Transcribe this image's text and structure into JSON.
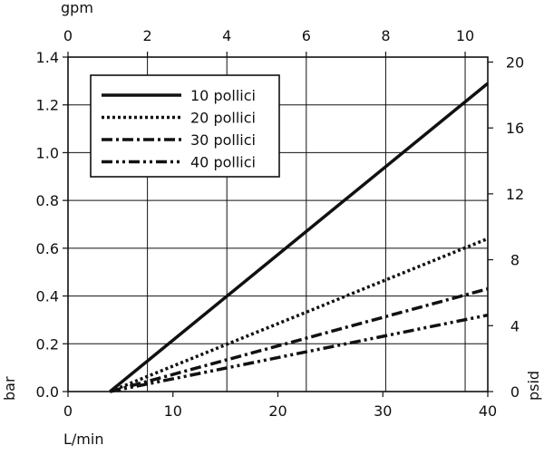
{
  "chart_data": {
    "type": "line",
    "x": [
      0,
      4,
      40
    ],
    "xlabel": "L/min",
    "xlim": [
      0,
      40
    ],
    "xticks": [
      "0",
      "10",
      "20",
      "30",
      "40"
    ],
    "x_top_label": "gpm",
    "x_top_lim": [
      0,
      10.57
    ],
    "x_top_ticks": [
      "0",
      "2",
      "4",
      "6",
      "8",
      "10"
    ],
    "ylabel": "bar",
    "ylim": [
      0,
      1.4
    ],
    "yticks": [
      "0.0",
      "0.2",
      "0.4",
      "0.6",
      "0.8",
      "1.0",
      "1.2",
      "1.4"
    ],
    "y_right_label": "psid",
    "y_right_lim": [
      0,
      20.3
    ],
    "y_right_ticks": [
      "0",
      "4",
      "8",
      "12",
      "16",
      "20"
    ],
    "grid": true,
    "legend_position": "top-left",
    "series": [
      {
        "name": "10 pollici",
        "style": "solid",
        "points": [
          [
            4,
            0
          ],
          [
            40,
            1.29
          ]
        ]
      },
      {
        "name": "20 pollici",
        "style": "dotted",
        "points": [
          [
            4,
            0
          ],
          [
            40,
            0.64
          ]
        ]
      },
      {
        "name": "30 pollici",
        "style": "dash-dot",
        "points": [
          [
            4,
            0
          ],
          [
            40,
            0.43
          ]
        ]
      },
      {
        "name": "40 pollici",
        "style": "dash-dot-dot",
        "points": [
          [
            4,
            0
          ],
          [
            40,
            0.32
          ]
        ]
      }
    ],
    "colors": {
      "line": "#111111",
      "grid": "#111111",
      "background": "#ffffff"
    }
  }
}
